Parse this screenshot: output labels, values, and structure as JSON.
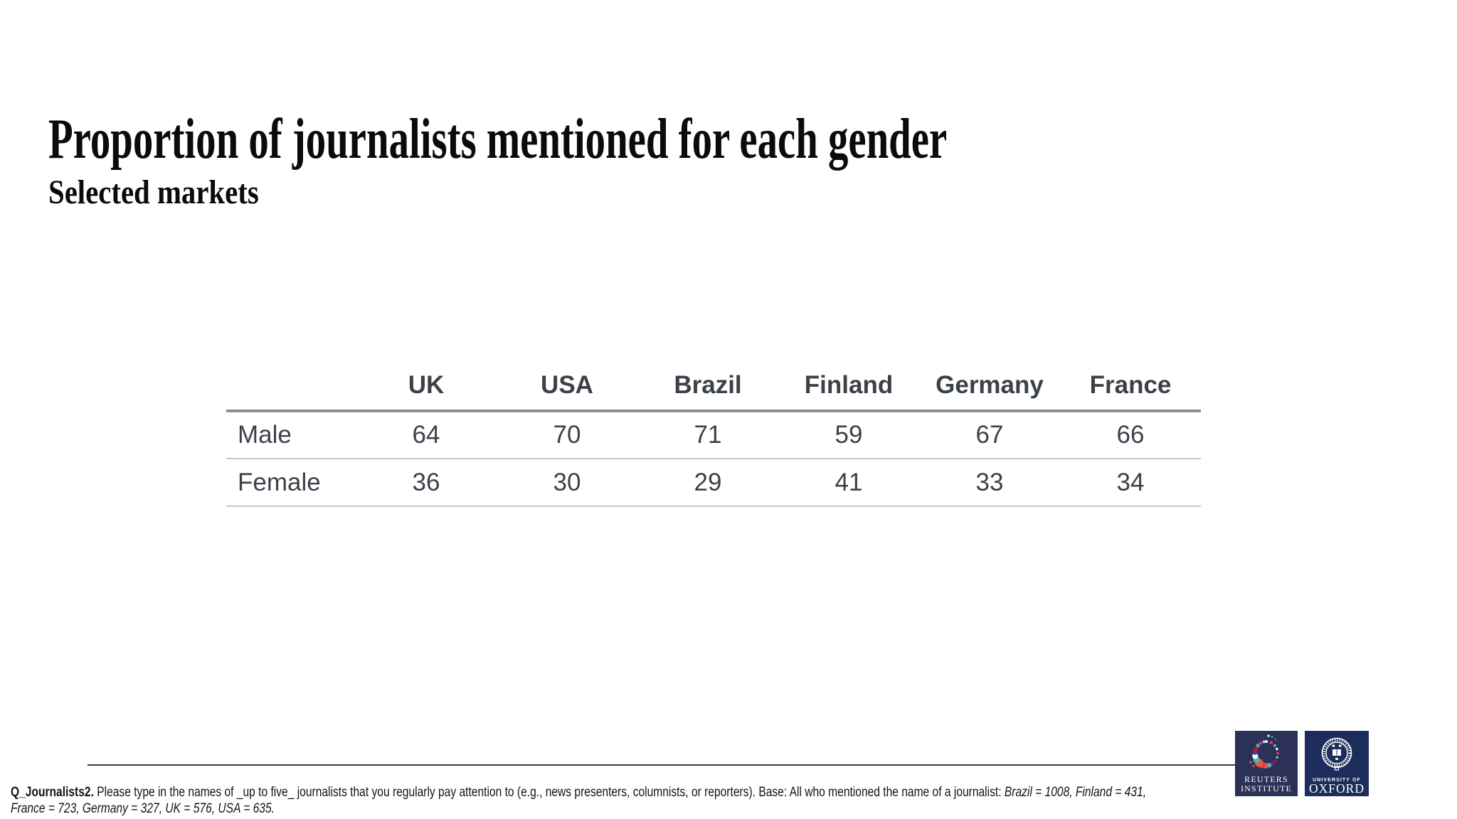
{
  "slide": {
    "title": "Proportion of journalists mentioned for each gender",
    "subtitle": "Selected markets"
  },
  "chart_data": {
    "type": "table",
    "title": "Proportion of journalists mentioned for each gender",
    "subtitle": "Selected markets",
    "unit": "percent",
    "categories": [
      "UK",
      "USA",
      "Brazil",
      "Finland",
      "Germany",
      "France"
    ],
    "series": [
      {
        "name": "Male",
        "values": [
          64,
          70,
          71,
          59,
          67,
          66
        ]
      },
      {
        "name": "Female",
        "values": [
          36,
          30,
          29,
          41,
          33,
          34
        ]
      }
    ],
    "layout_hints": {
      "grid": "horizontal rules only",
      "header_rule": "thick gray",
      "row_rules": "thin light gray"
    }
  },
  "footnote": {
    "question_id": "Q_Journalists2.",
    "question_text": " Please type in the names of _up to five_ journalists that you regularly pay attention to (e.g., news presenters, columnists, or reporters). Base: All who mentioned the name of a journalist: ",
    "base_italic": "Brazil = 1008, Finland = 431, France = 723, Germany = 327, UK = 576, USA = 635."
  },
  "logos": {
    "reuters": {
      "line1": "REUTERS",
      "line2": "INSTITUTE",
      "bg": "#2b3157",
      "dot_palette": [
        "#ffffff",
        "#ee5b25",
        "#45b8b0",
        "#d63a7c",
        "#6d2d8e",
        "#a8d8e0",
        "#c8102e"
      ]
    },
    "oxford": {
      "line1": "UNIVERSITY OF",
      "line2": "OXFORD",
      "bg": "#1c2d5b"
    }
  },
  "colors": {
    "background": "#ffffff",
    "title_text": "#0b0b0b",
    "table_text": "#3b4149",
    "header_rule": "#8d8d8d",
    "row_rule": "#c6c6c6",
    "footer_rule": "#3a3a52"
  }
}
